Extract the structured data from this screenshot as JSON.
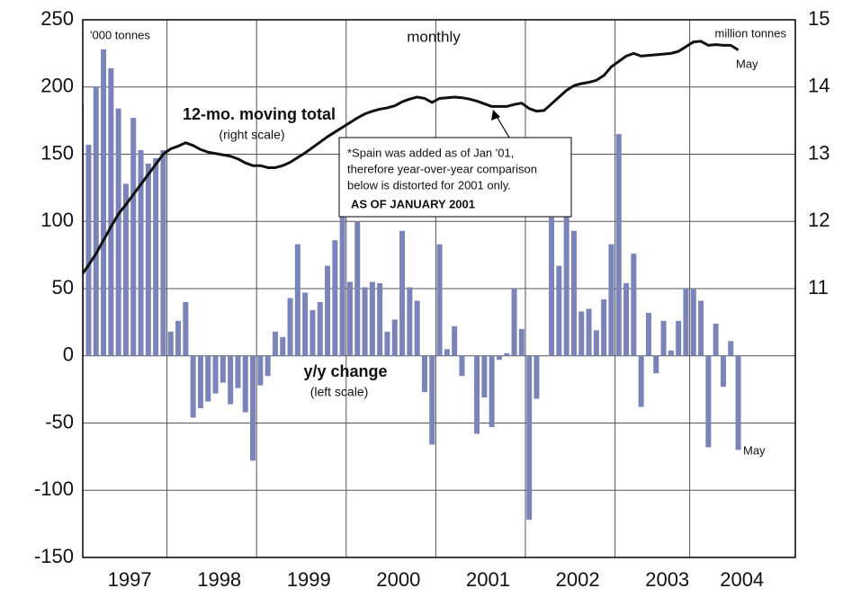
{
  "chart_data": {
    "type": "bar_line",
    "categories": [
      null,
      null,
      null,
      null,
      null,
      null,
      "1997",
      null,
      null,
      null,
      null,
      null,
      null,
      null,
      null,
      null,
      null,
      null,
      "1998",
      null,
      null,
      null,
      null,
      null,
      null,
      null,
      null,
      null,
      null,
      null,
      "1999",
      null,
      null,
      null,
      null,
      null,
      null,
      null,
      null,
      null,
      null,
      null,
      "2000",
      null,
      null,
      null,
      null,
      null,
      null,
      null,
      null,
      null,
      null,
      null,
      "2001",
      null,
      null,
      null,
      null,
      null,
      null,
      null,
      null,
      null,
      null,
      null,
      "2002",
      null,
      null,
      null,
      null,
      null,
      null,
      null,
      null,
      null,
      null,
      null,
      "2003",
      null,
      null,
      null,
      null,
      null,
      null,
      null,
      null,
      null,
      "2004"
    ],
    "series": [
      {
        "name": "y/y change",
        "color": "#7a84b8",
        "axis": "y",
        "values": [
          187,
          157,
          200,
          228,
          214,
          184,
          128,
          177,
          153,
          143,
          147,
          153,
          18,
          26,
          40,
          -46,
          -39,
          -34,
          -28,
          -20,
          -36,
          -24,
          -42,
          -78,
          -22,
          -15,
          18,
          14,
          43,
          83,
          47,
          34,
          40,
          67,
          86,
          110,
          55,
          100,
          51,
          55,
          54,
          18,
          27,
          93,
          51,
          41,
          -27,
          -66,
          83,
          5,
          22,
          -15,
          0,
          -58,
          -31,
          -53,
          -3,
          2,
          50,
          20,
          -122,
          -32,
          0,
          103,
          67,
          105,
          93,
          33,
          35,
          19,
          42,
          83,
          165,
          54,
          76,
          -38,
          32,
          -13,
          26,
          4,
          26,
          50,
          50,
          41,
          -68,
          24,
          -23,
          11,
          -70
        ]
      },
      {
        "name": "12-mo. moving total",
        "color": "#111111",
        "axis": "y2",
        "values": [
          11.19,
          11.35,
          11.52,
          11.72,
          11.92,
          12.11,
          12.25,
          12.4,
          12.55,
          12.7,
          12.85,
          13.0,
          13.08,
          13.12,
          13.17,
          13.13,
          13.07,
          13.03,
          13.01,
          12.99,
          12.97,
          12.93,
          12.87,
          12.83,
          12.83,
          12.8,
          12.8,
          12.83,
          12.88,
          12.95,
          13.02,
          13.1,
          13.18,
          13.26,
          13.33,
          13.4,
          13.47,
          13.54,
          13.6,
          13.64,
          13.67,
          13.69,
          13.72,
          13.78,
          13.82,
          13.85,
          13.83,
          13.77,
          13.83,
          13.84,
          13.85,
          13.84,
          13.82,
          13.79,
          13.75,
          13.71,
          13.71,
          13.71,
          13.74,
          13.76,
          13.68,
          13.64,
          13.65,
          13.75,
          13.85,
          13.95,
          14.02,
          14.05,
          14.07,
          14.1,
          14.17,
          14.3,
          14.38,
          14.46,
          14.5,
          14.46,
          14.47,
          14.48,
          14.49,
          14.5,
          14.53,
          14.6,
          14.67,
          14.68,
          14.62,
          14.63,
          14.62,
          14.62,
          14.55
        ]
      }
    ],
    "ylim": [
      -150,
      250
    ],
    "yticks": [
      -150,
      -100,
      -50,
      0,
      50,
      100,
      150,
      200,
      250
    ],
    "y2lim": [
      7,
      15
    ],
    "y2ticks": [
      11,
      12,
      13,
      14,
      15
    ],
    "grid": true,
    "annotations": {
      "left_unit": "'000 tonnes",
      "frequency": "monthly",
      "right_unit": "million tonnes",
      "line_end": "May",
      "bar_end": "May",
      "line_label": "12-mo. moving total",
      "line_scale": "(right scale)",
      "bar_label": "y/y change",
      "bar_scale": "(left scale)",
      "note_lines": [
        "*Spain was added as of Jan '01,",
        "therefore year-over-year comparison",
        "below is distorted for 2001 only."
      ],
      "note_bold": "AS OF JANUARY 2001"
    }
  }
}
